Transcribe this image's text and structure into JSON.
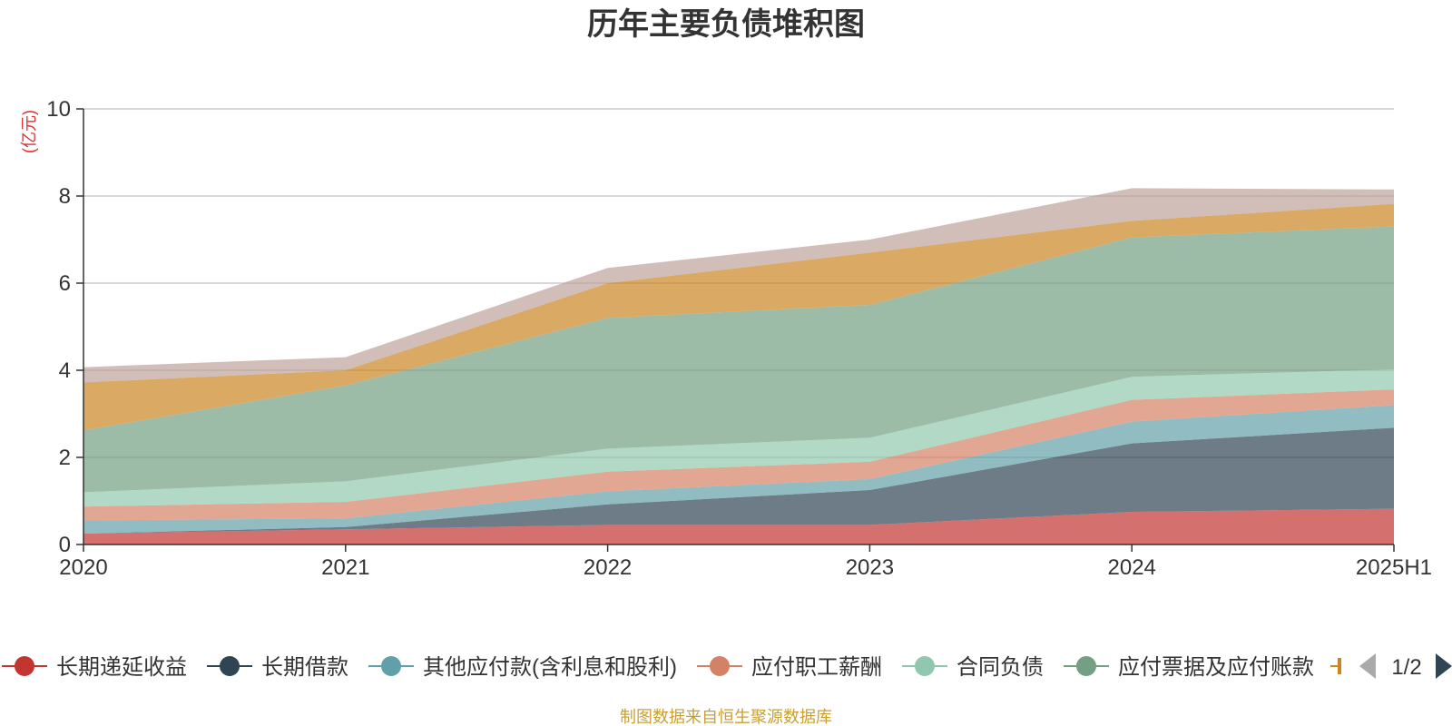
{
  "chart_data": {
    "type": "area",
    "stacked": true,
    "title": "历年主要负债堆积图",
    "unit_label": "(亿元)",
    "categories": [
      "2020",
      "2021",
      "2022",
      "2023",
      "2024",
      "2025H1"
    ],
    "ylim": [
      0,
      10
    ],
    "yticks": [
      0,
      2,
      4,
      6,
      8,
      10
    ],
    "grid": true,
    "series": [
      {
        "name": "长期递延收益",
        "color": "#c23531",
        "values": [
          0.25,
          0.35,
          0.45,
          0.45,
          0.75,
          0.82
        ]
      },
      {
        "name": "长期借款",
        "color": "#2f4554",
        "values": [
          0.0,
          0.05,
          0.47,
          0.8,
          1.57,
          1.86
        ]
      },
      {
        "name": "其他应付款(含利息和股利)",
        "color": "#61a0a8",
        "values": [
          0.3,
          0.2,
          0.3,
          0.25,
          0.5,
          0.52
        ]
      },
      {
        "name": "应付职工薪酬",
        "color": "#d48265",
        "values": [
          0.32,
          0.38,
          0.45,
          0.4,
          0.5,
          0.36
        ]
      },
      {
        "name": "合同负债",
        "color": "#91c7ae",
        "values": [
          0.33,
          0.47,
          0.53,
          0.55,
          0.53,
          0.46
        ]
      },
      {
        "name": "应付票据及应付账款",
        "color": "#749f83",
        "values": [
          1.42,
          2.2,
          3.0,
          3.05,
          3.2,
          3.28
        ]
      },
      {
        "name": "",
        "color": "#ca8622",
        "values": [
          1.1,
          0.35,
          0.8,
          1.2,
          0.38,
          0.52
        ]
      },
      {
        "name": "",
        "color": "#bda29a",
        "values": [
          0.35,
          0.3,
          0.35,
          0.3,
          0.75,
          0.33
        ]
      }
    ],
    "legend": {
      "placement": "bottom",
      "page_label": "1/2"
    }
  },
  "source_note": "制图数据来自恒生聚源数据库"
}
